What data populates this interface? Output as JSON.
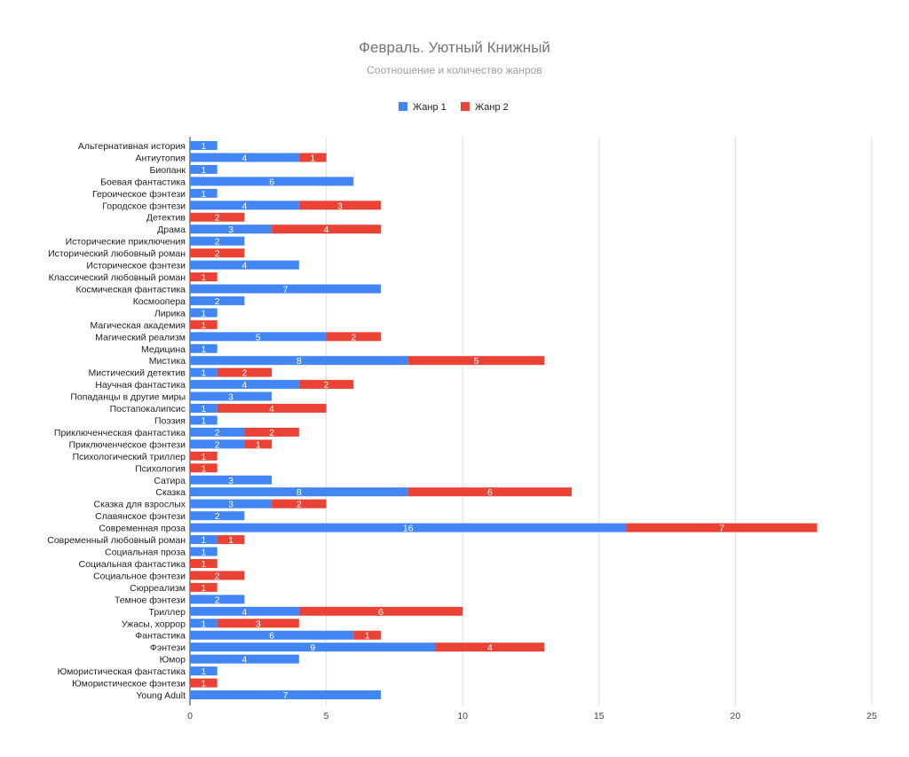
{
  "chart_data": {
    "type": "bar",
    "orientation": "horizontal",
    "stacked": true,
    "title": "Февраль. Уютный Книжный",
    "subtitle": "Соотношение и количество жанров",
    "xlabel": "",
    "ylabel": "",
    "xlim": [
      0,
      25
    ],
    "xticks": [
      0,
      5,
      10,
      15,
      20,
      25
    ],
    "grid": true,
    "legend_position": "top",
    "colors": {
      "Жанр 1": "#4285f4",
      "Жанр 2": "#ea4335"
    },
    "categories": [
      "Альтернативная история",
      "Антиутопия",
      "Биопанк",
      "Боевая фантастика",
      "Героическое фэнтези",
      "Городское фэнтези",
      "Детектив",
      "Драма",
      "Исторические приключения",
      "Исторический любовный роман",
      "Историческое фэнтези",
      "Классический любовный роман",
      "Космическая фантастика",
      "Космоопера",
      "Лирика",
      "Магическая академия",
      "Магический реализм",
      "Медицина",
      "Мистика",
      "Мистический детектив",
      "Научная фантастика",
      "Попаданцы в другие миры",
      "Постапокалипсис",
      "Поэзия",
      "Приключенческая фантастика",
      "Приключенческое фэнтези",
      "Психологический триллер",
      "Психология",
      "Сатира",
      "Сказка",
      "Сказка для взрослых",
      "Славянское фэнтези",
      "Современная проза",
      "Современный любовный роман",
      "Социальная проза",
      "Социальная фантастика",
      "Социальное фэнтези",
      "Сюрреализм",
      "Темное фэнтези",
      "Триллер",
      "Ужасы, хоррор",
      "Фантастика",
      "Фэнтези",
      "Юмор",
      "Юмористическая фантастика",
      "Юмористическое фэнтези",
      "Young Adult"
    ],
    "series": [
      {
        "name": "Жанр 1",
        "values": [
          1,
          4,
          1,
          6,
          1,
          4,
          0,
          3,
          2,
          0,
          4,
          0,
          7,
          2,
          1,
          0,
          5,
          1,
          8,
          1,
          4,
          3,
          1,
          1,
          2,
          2,
          0,
          0,
          3,
          8,
          3,
          2,
          16,
          1,
          1,
          0,
          0,
          0,
          2,
          4,
          1,
          6,
          9,
          4,
          1,
          0,
          7
        ]
      },
      {
        "name": "Жанр 2",
        "values": [
          0,
          1,
          0,
          0,
          0,
          3,
          2,
          4,
          0,
          2,
          0,
          1,
          0,
          0,
          0,
          1,
          2,
          0,
          5,
          2,
          2,
          0,
          4,
          0,
          2,
          1,
          1,
          1,
          0,
          6,
          2,
          0,
          7,
          1,
          0,
          1,
          2,
          1,
          0,
          6,
          3,
          1,
          4,
          0,
          0,
          1,
          0
        ]
      }
    ]
  }
}
